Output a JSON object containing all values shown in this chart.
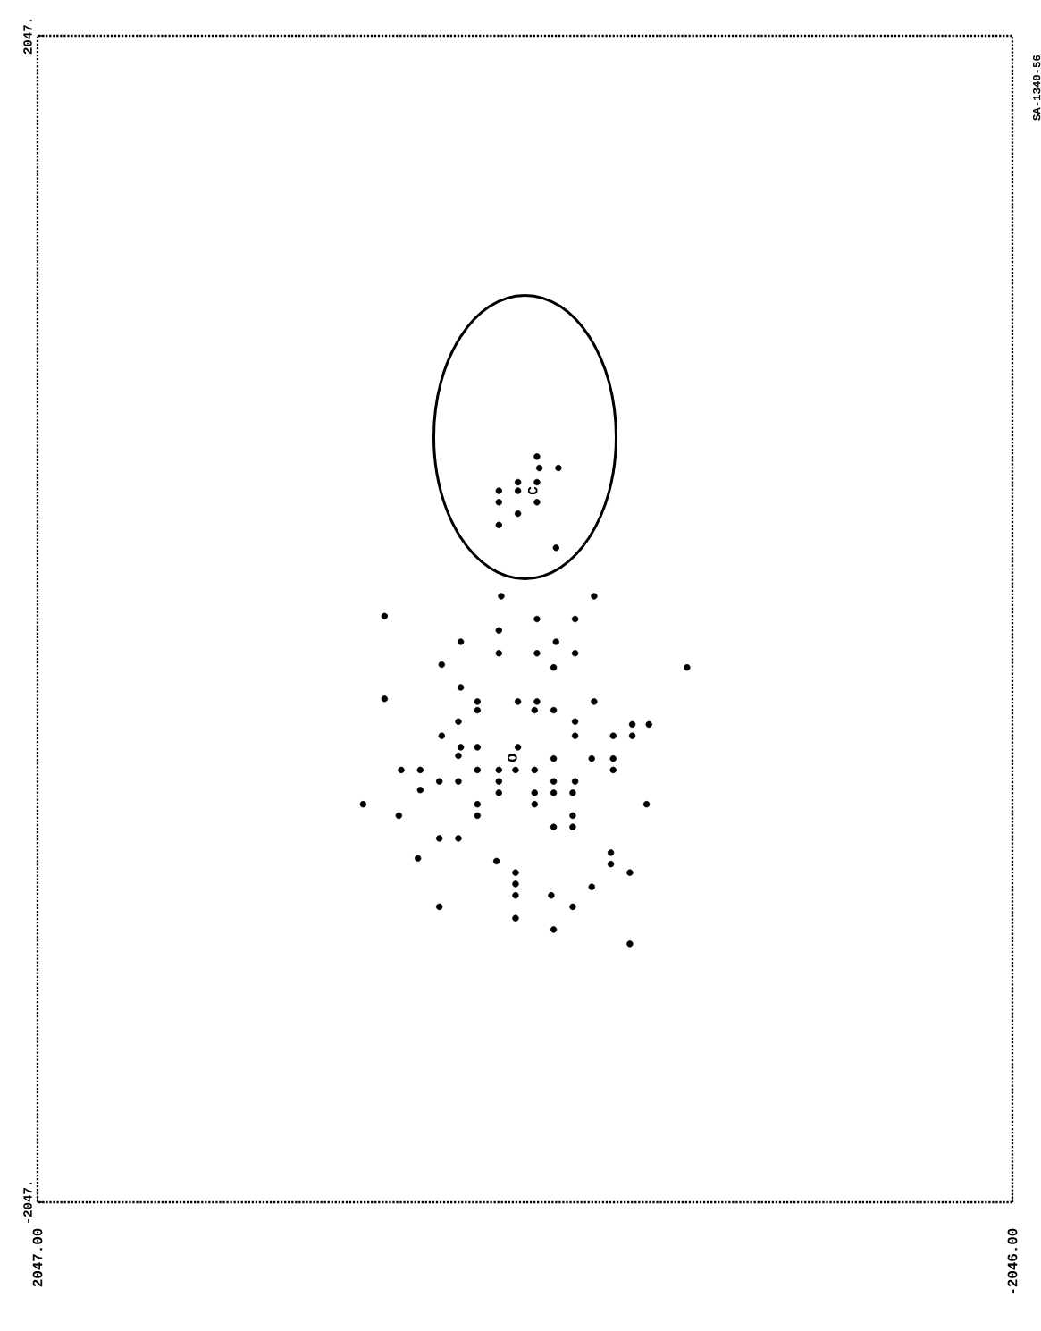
{
  "chart_data": {
    "type": "scatter",
    "xlim": [
      2047,
      -2046
    ],
    "ylim": [
      -2047,
      2047
    ],
    "xticks": [
      {
        "value": 2047,
        "label": "2047.00"
      },
      {
        "value": -2046,
        "label": "-2046.00"
      }
    ],
    "yticks": [
      {
        "value": -2047,
        "label": "-2047."
      },
      {
        "value": 2047,
        "label": "2047."
      }
    ],
    "grid": false,
    "marker": "circle",
    "annotations": [
      "SA-1340-56",
      "C",
      "O"
    ],
    "series": [
      {
        "color": "#000000",
        "x": [
          -50,
          -60,
          -140,
          30,
          -50,
          110,
          30,
          110,
          -50,
          30,
          110,
          -130,
          100,
          -290,
          590,
          -50,
          -210,
          110,
          270,
          -130,
          110,
          -50,
          -210,
          350,
          -120,
          -680,
          270,
          590,
          200,
          30,
          -50,
          -290,
          200,
          -40,
          -120,
          280,
          -210,
          -450,
          -520,
          350,
          -210,
          -370,
          -450,
          270,
          200,
          30,
          280,
          -120,
          -280,
          -370,
          520,
          440,
          200,
          110,
          40,
          -40,
          -370,
          360,
          280,
          110,
          -120,
          -210,
          440,
          110,
          -40,
          -120,
          -200,
          680,
          200,
          -40,
          -510,
          530,
          200,
          -200,
          -120,
          -200,
          360,
          280,
          -360,
          450,
          120,
          -360,
          40,
          -440,
          40,
          -280,
          40,
          -110,
          360,
          -200,
          40,
          -120,
          -440
        ],
        "values": [
          570,
          530,
          530,
          480,
          480,
          450,
          450,
          410,
          410,
          370,
          330,
          250,
          80,
          80,
          10,
          0,
          0,
          -40,
          -80,
          -80,
          -120,
          -120,
          -120,
          -160,
          -170,
          -170,
          -240,
          -280,
          -290,
          -290,
          -290,
          -290,
          -320,
          -320,
          -320,
          -360,
          -360,
          -370,
          -370,
          -410,
          -410,
          -410,
          -410,
          -450,
          -450,
          -450,
          -480,
          -490,
          -490,
          -490,
          -530,
          -530,
          -530,
          -530,
          -530,
          -530,
          -530,
          -570,
          -570,
          -570,
          -570,
          -570,
          -600,
          -610,
          -610,
          -610,
          -610,
          -650,
          -650,
          -650,
          -650,
          -690,
          -690,
          -690,
          -730,
          -730,
          -770,
          -770,
          -820,
          -840,
          -850,
          -860,
          -890,
          -890,
          -930,
          -940,
          -970,
          -970,
          -1010,
          -1010,
          -1050,
          -1090,
          -1140
        ]
      }
    ]
  }
}
